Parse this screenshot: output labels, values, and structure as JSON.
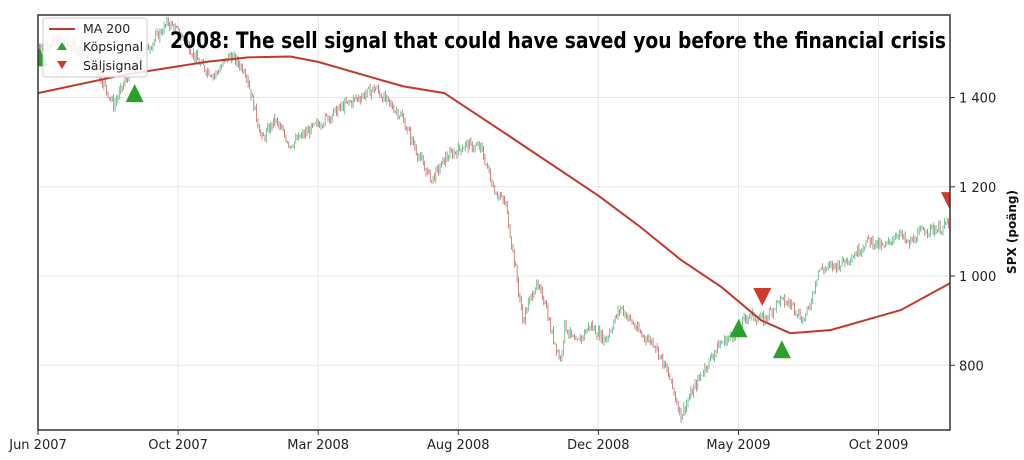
{
  "chart_data": {
    "type": "candlestick",
    "title": "2008: The sell signal that could have saved you before the financial crisis",
    "xlabel": "",
    "ylabel": "SPX  (poäng)",
    "xlim": [
      0,
      651
    ],
    "ylim": [
      655,
      1585
    ],
    "grid": true,
    "legend_placement": "top-left",
    "x_ticks": [
      {
        "x": 0,
        "label": "Jun 2007"
      },
      {
        "x": 100,
        "label": "Oct 2007"
      },
      {
        "x": 200,
        "label": "Mar 2008"
      },
      {
        "x": 300,
        "label": "Aug 2008"
      },
      {
        "x": 400,
        "label": "Dec 2008"
      },
      {
        "x": 500,
        "label": "May 2009"
      },
      {
        "x": 600,
        "label": "Oct 2009"
      }
    ],
    "y_ticks": [
      {
        "y": 800,
        "label": "800"
      },
      {
        "y": 1000,
        "label": "1 000"
      },
      {
        "y": 1200,
        "label": "1 200"
      },
      {
        "y": 1400,
        "label": "1 400"
      }
    ],
    "legend": [
      {
        "key": "ma",
        "label": "MA 200"
      },
      {
        "key": "buy",
        "label": "Köpsignal"
      },
      {
        "key": "sell",
        "label": "Säljsignal"
      }
    ],
    "colors": {
      "ma": "#c0392b",
      "buy": "#2ca02c",
      "sell": "#d03a2a",
      "up": "#3aa86b",
      "down": "#b5504a"
    },
    "price_close": [
      [
        0,
        1517
      ],
      [
        16,
        1528
      ],
      [
        30,
        1506
      ],
      [
        44,
        1450
      ],
      [
        54,
        1383
      ],
      [
        66,
        1461
      ],
      [
        80,
        1517
      ],
      [
        93,
        1569
      ],
      [
        105,
        1528
      ],
      [
        116,
        1472
      ],
      [
        126,
        1450
      ],
      [
        137,
        1495
      ],
      [
        148,
        1461
      ],
      [
        160,
        1305
      ],
      [
        169,
        1350
      ],
      [
        180,
        1294
      ],
      [
        194,
        1327
      ],
      [
        209,
        1361
      ],
      [
        219,
        1383
      ],
      [
        241,
        1421
      ],
      [
        248,
        1394
      ],
      [
        259,
        1361
      ],
      [
        273,
        1260
      ],
      [
        281,
        1215
      ],
      [
        291,
        1265
      ],
      [
        305,
        1294
      ],
      [
        316,
        1287
      ],
      [
        326,
        1193
      ],
      [
        334,
        1159
      ],
      [
        341,
        1013
      ],
      [
        346,
        901
      ],
      [
        355,
        980
      ],
      [
        362,
        946
      ],
      [
        366,
        879
      ],
      [
        373,
        812
      ],
      [
        376,
        890
      ],
      [
        384,
        846
      ],
      [
        394,
        890
      ],
      [
        405,
        857
      ],
      [
        416,
        930
      ],
      [
        430,
        870
      ],
      [
        440,
        850
      ],
      [
        450,
        778
      ],
      [
        459,
        688
      ],
      [
        464,
        722
      ],
      [
        475,
        789
      ],
      [
        486,
        846
      ],
      [
        496,
        868
      ],
      [
        507,
        913
      ],
      [
        518,
        901
      ],
      [
        529,
        946
      ],
      [
        539,
        935
      ],
      [
        546,
        901
      ],
      [
        550,
        924
      ],
      [
        557,
        1013
      ],
      [
        571,
        1025
      ],
      [
        582,
        1047
      ],
      [
        593,
        1081
      ],
      [
        604,
        1063
      ],
      [
        614,
        1099
      ],
      [
        621,
        1070
      ],
      [
        632,
        1103
      ],
      [
        646,
        1108
      ],
      [
        651,
        1125
      ]
    ],
    "ma200": [
      [
        0,
        1410
      ],
      [
        60,
        1450
      ],
      [
        120,
        1480
      ],
      [
        150,
        1490
      ],
      [
        180,
        1492
      ],
      [
        200,
        1480
      ],
      [
        244,
        1440
      ],
      [
        261,
        1425
      ],
      [
        290,
        1410
      ],
      [
        330,
        1327
      ],
      [
        400,
        1180
      ],
      [
        430,
        1110
      ],
      [
        459,
        1036
      ],
      [
        488,
        975
      ],
      [
        516,
        901
      ],
      [
        537,
        872
      ],
      [
        566,
        879
      ],
      [
        616,
        924
      ],
      [
        651,
        984
      ]
    ],
    "signals": [
      {
        "type": "buy",
        "x": 1,
        "y": 1490
      },
      {
        "type": "buy",
        "x": 69,
        "y": 1410
      },
      {
        "type": "buy",
        "x": 500,
        "y": 883
      },
      {
        "type": "sell",
        "x": 517,
        "y": 953
      },
      {
        "type": "buy",
        "x": 531,
        "y": 836
      },
      {
        "type": "sell",
        "x": 651,
        "y": 1168
      }
    ]
  }
}
